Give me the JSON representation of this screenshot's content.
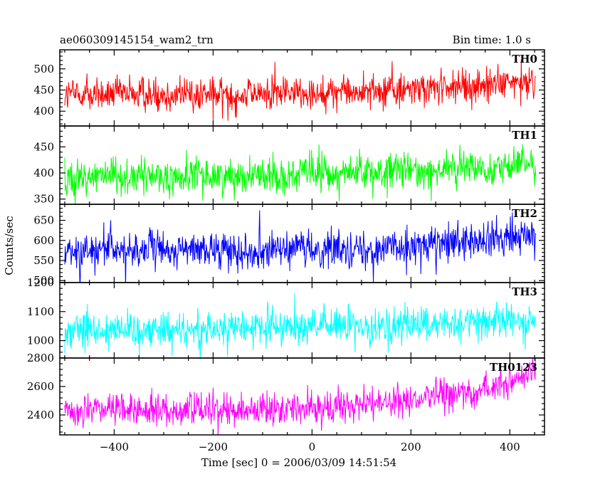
{
  "header": {
    "title": "ae060309145154_wam2_trn",
    "bin_time": "Bin time: 1.0 s"
  },
  "chart_data": {
    "type": "line",
    "title": "ae060309145154_wam2_trn",
    "subtitle": "Bin time: 1.0 s",
    "xlabel": "Time [sec] 0 = 2006/03/09 14:51:54",
    "ylabel": "Counts/sec",
    "xlim": [
      -510,
      470
    ],
    "x_ticks": [
      "-400",
      "-200",
      "0",
      "200",
      "400"
    ],
    "x_start": -500,
    "x_end": 452,
    "x_step": 1,
    "grid": false,
    "panels": [
      {
        "name": "TH0",
        "color": "#ff0000",
        "ylim": [
          365,
          545
        ],
        "y_ticks": [
          "400",
          "450",
          "500"
        ],
        "trend": [
          [
            -500,
            440
          ],
          [
            -200,
            440
          ],
          [
            100,
            446
          ],
          [
            300,
            456
          ],
          [
            452,
            470
          ]
        ],
        "noise": 20,
        "spike_chance": 0.05,
        "spike_amp": 30
      },
      {
        "name": "TH1",
        "color": "#00ff00",
        "ylim": [
          340,
          490
        ],
        "y_ticks": [
          "350",
          "400",
          "450"
        ],
        "trend": [
          [
            -500,
            393
          ],
          [
            -200,
            394
          ],
          [
            100,
            400
          ],
          [
            300,
            408
          ],
          [
            452,
            420
          ]
        ],
        "noise": 17,
        "spike_chance": 0.05,
        "spike_amp": 25
      },
      {
        "name": "TH2",
        "color": "#0000ff",
        "ylim": [
          495,
          690
        ],
        "y_ticks": [
          "500",
          "550",
          "600",
          "650"
        ],
        "trend": [
          [
            -500,
            575
          ],
          [
            -200,
            575
          ],
          [
            100,
            580
          ],
          [
            300,
            592
          ],
          [
            452,
            612
          ]
        ],
        "noise": 22,
        "spike_chance": 0.05,
        "spike_amp": 35
      },
      {
        "name": "TH3",
        "color": "#00ffff",
        "ylim": [
          940,
          1200
        ],
        "y_ticks": [
          "1000",
          "1100",
          "1200"
        ],
        "trend": [
          [
            -500,
            1040
          ],
          [
            -200,
            1042
          ],
          [
            100,
            1050
          ],
          [
            300,
            1062
          ],
          [
            452,
            1075
          ]
        ],
        "noise": 30,
        "spike_chance": 0.05,
        "spike_amp": 55
      },
      {
        "name": "TH0123",
        "color": "#ff00ff",
        "ylim": [
          2260,
          2800
        ],
        "y_ticks": [
          "2400",
          "2600",
          "2800"
        ],
        "trend": [
          [
            -500,
            2430
          ],
          [
            -200,
            2440
          ],
          [
            0,
            2450
          ],
          [
            200,
            2500
          ],
          [
            350,
            2580
          ],
          [
            452,
            2700
          ]
        ],
        "noise": 55,
        "spike_chance": 0.05,
        "spike_amp": 90
      }
    ]
  }
}
